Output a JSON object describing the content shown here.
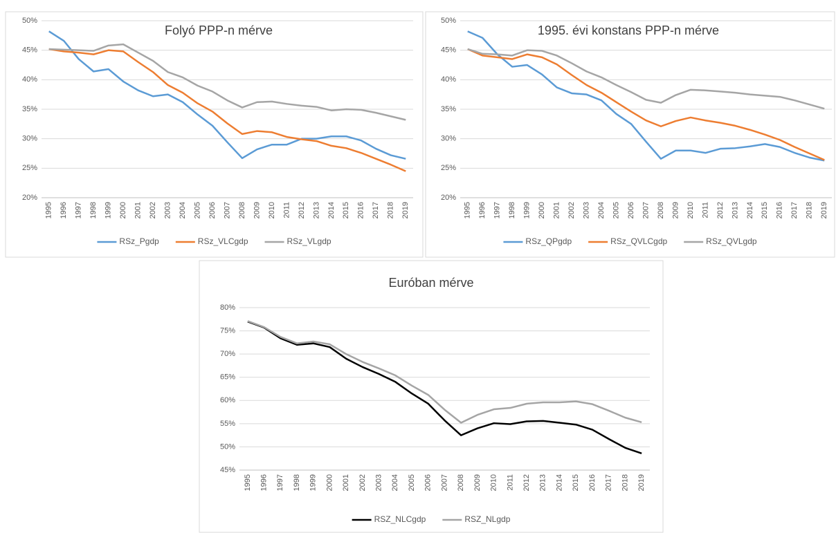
{
  "chart_data": [
    {
      "type": "line",
      "title": "Folyó PPP-n mérve",
      "categories": [
        "1995",
        "1996",
        "1997",
        "1998",
        "1999",
        "2000",
        "2001",
        "2002",
        "2003",
        "2004",
        "2005",
        "2006",
        "2007",
        "2008",
        "2009",
        "2010",
        "2011",
        "2012",
        "2013",
        "2014",
        "2015",
        "2016",
        "2017",
        "2018",
        "2019"
      ],
      "series": [
        {
          "name": "RSz_Pgdp",
          "color": "#5b9bd5",
          "values": [
            48.2,
            46.6,
            43.5,
            41.4,
            41.8,
            39.7,
            38.2,
            37.2,
            37.5,
            36.2,
            34.1,
            32.2,
            29.4,
            26.7,
            28.2,
            29.0,
            29.0,
            30.0,
            30.0,
            30.4,
            30.4,
            29.7,
            28.3,
            27.2,
            26.6
          ]
        },
        {
          "name": "RSz_VLCgdp",
          "color": "#ed7d31",
          "values": [
            45.2,
            44.8,
            44.6,
            44.3,
            45.0,
            44.8,
            43.0,
            41.3,
            39.1,
            37.8,
            36.0,
            34.6,
            32.6,
            30.8,
            31.3,
            31.1,
            30.3,
            29.9,
            29.6,
            28.8,
            28.4,
            27.6,
            26.6,
            25.6,
            24.5
          ]
        },
        {
          "name": "RSz_VLgdp",
          "color": "#a5a5a5",
          "values": [
            45.2,
            45.1,
            45.0,
            44.9,
            45.8,
            46.0,
            44.6,
            43.2,
            41.3,
            40.4,
            39.0,
            38.0,
            36.5,
            35.3,
            36.2,
            36.3,
            35.9,
            35.6,
            35.4,
            34.8,
            35.0,
            34.9,
            34.4,
            33.8,
            33.2
          ]
        }
      ],
      "ylim": [
        20,
        50
      ],
      "yticks": [
        {
          "value": 20,
          "label": "20%"
        },
        {
          "value": 25,
          "label": "25%"
        },
        {
          "value": 30,
          "label": "30%"
        },
        {
          "value": 35,
          "label": "35%"
        },
        {
          "value": 40,
          "label": "40%"
        },
        {
          "value": 45,
          "label": "45%"
        },
        {
          "value": 50,
          "label": "50%"
        }
      ],
      "grid": true,
      "legend": "bottom"
    },
    {
      "type": "line",
      "title": "1995. évi konstans PPP-n mérve",
      "categories": [
        "1995",
        "1996",
        "1997",
        "1998",
        "1999",
        "2000",
        "2001",
        "2002",
        "2003",
        "2004",
        "2005",
        "2006",
        "2007",
        "2008",
        "2009",
        "2010",
        "2011",
        "2012",
        "2013",
        "2014",
        "2015",
        "2016",
        "2017",
        "2018",
        "2019"
      ],
      "series": [
        {
          "name": "RSz_QPgdp",
          "color": "#5b9bd5",
          "values": [
            48.2,
            47.1,
            44.3,
            42.2,
            42.5,
            40.9,
            38.7,
            37.7,
            37.5,
            36.5,
            34.2,
            32.5,
            29.5,
            26.6,
            28.0,
            28.0,
            27.6,
            28.3,
            28.4,
            28.7,
            29.1,
            28.6,
            27.6,
            26.8,
            26.3
          ]
        },
        {
          "name": "RSz_QVLCgdp",
          "color": "#ed7d31",
          "values": [
            45.2,
            44.1,
            43.8,
            43.5,
            44.3,
            43.8,
            42.6,
            40.8,
            39.1,
            37.8,
            36.2,
            34.6,
            33.1,
            32.1,
            33.0,
            33.6,
            33.1,
            32.7,
            32.2,
            31.5,
            30.7,
            29.8,
            28.6,
            27.5,
            26.4
          ]
        },
        {
          "name": "RSz_QVLgdp",
          "color": "#a5a5a5",
          "values": [
            45.2,
            44.4,
            44.3,
            44.1,
            45.0,
            44.9,
            44.1,
            42.8,
            41.4,
            40.4,
            39.1,
            37.9,
            36.6,
            36.1,
            37.4,
            38.3,
            38.2,
            38.0,
            37.8,
            37.5,
            37.3,
            37.1,
            36.5,
            35.8,
            35.1
          ]
        }
      ],
      "ylim": [
        20,
        50
      ],
      "yticks": [
        {
          "value": 20,
          "label": "20%"
        },
        {
          "value": 25,
          "label": "25%"
        },
        {
          "value": 30,
          "label": "30%"
        },
        {
          "value": 35,
          "label": "35%"
        },
        {
          "value": 40,
          "label": "40%"
        },
        {
          "value": 45,
          "label": "45%"
        },
        {
          "value": 50,
          "label": "50%"
        }
      ],
      "grid": true,
      "legend": "bottom"
    },
    {
      "type": "line",
      "title": "Euróban mérve",
      "categories": [
        "1995",
        "1996",
        "1997",
        "1998",
        "1999",
        "2000",
        "2001",
        "2002",
        "2003",
        "2004",
        "2005",
        "2006",
        "2007",
        "2008",
        "2009",
        "2010",
        "2011",
        "2012",
        "2013",
        "2014",
        "2015",
        "2016",
        "2017",
        "2018",
        "2019"
      ],
      "series": [
        {
          "name": "RSZ_NLCgdp",
          "color": "#000000",
          "values": [
            77.0,
            75.7,
            73.4,
            72.0,
            72.3,
            71.5,
            69.0,
            67.2,
            65.7,
            64.0,
            61.5,
            59.3,
            55.7,
            52.5,
            54.0,
            55.1,
            54.9,
            55.5,
            55.6,
            55.2,
            54.8,
            53.7,
            51.7,
            49.8,
            48.6
          ]
        },
        {
          "name": "RSZ_NLgdp",
          "color": "#a5a5a5",
          "values": [
            77.1,
            75.8,
            73.7,
            72.3,
            72.7,
            72.1,
            70.0,
            68.3,
            66.9,
            65.4,
            63.2,
            61.2,
            58.0,
            55.2,
            56.9,
            58.1,
            58.4,
            59.3,
            59.6,
            59.6,
            59.8,
            59.2,
            57.8,
            56.3,
            55.3
          ]
        }
      ],
      "ylim": [
        45,
        80
      ],
      "yticks": [
        {
          "value": 45,
          "label": "45%"
        },
        {
          "value": 50,
          "label": "50%"
        },
        {
          "value": 55,
          "label": "55%"
        },
        {
          "value": 60,
          "label": "60%"
        },
        {
          "value": 65,
          "label": "65%"
        },
        {
          "value": 70,
          "label": "70%"
        },
        {
          "value": 75,
          "label": "75%"
        },
        {
          "value": 80,
          "label": "80%"
        }
      ],
      "grid": true,
      "legend": "bottom"
    }
  ]
}
